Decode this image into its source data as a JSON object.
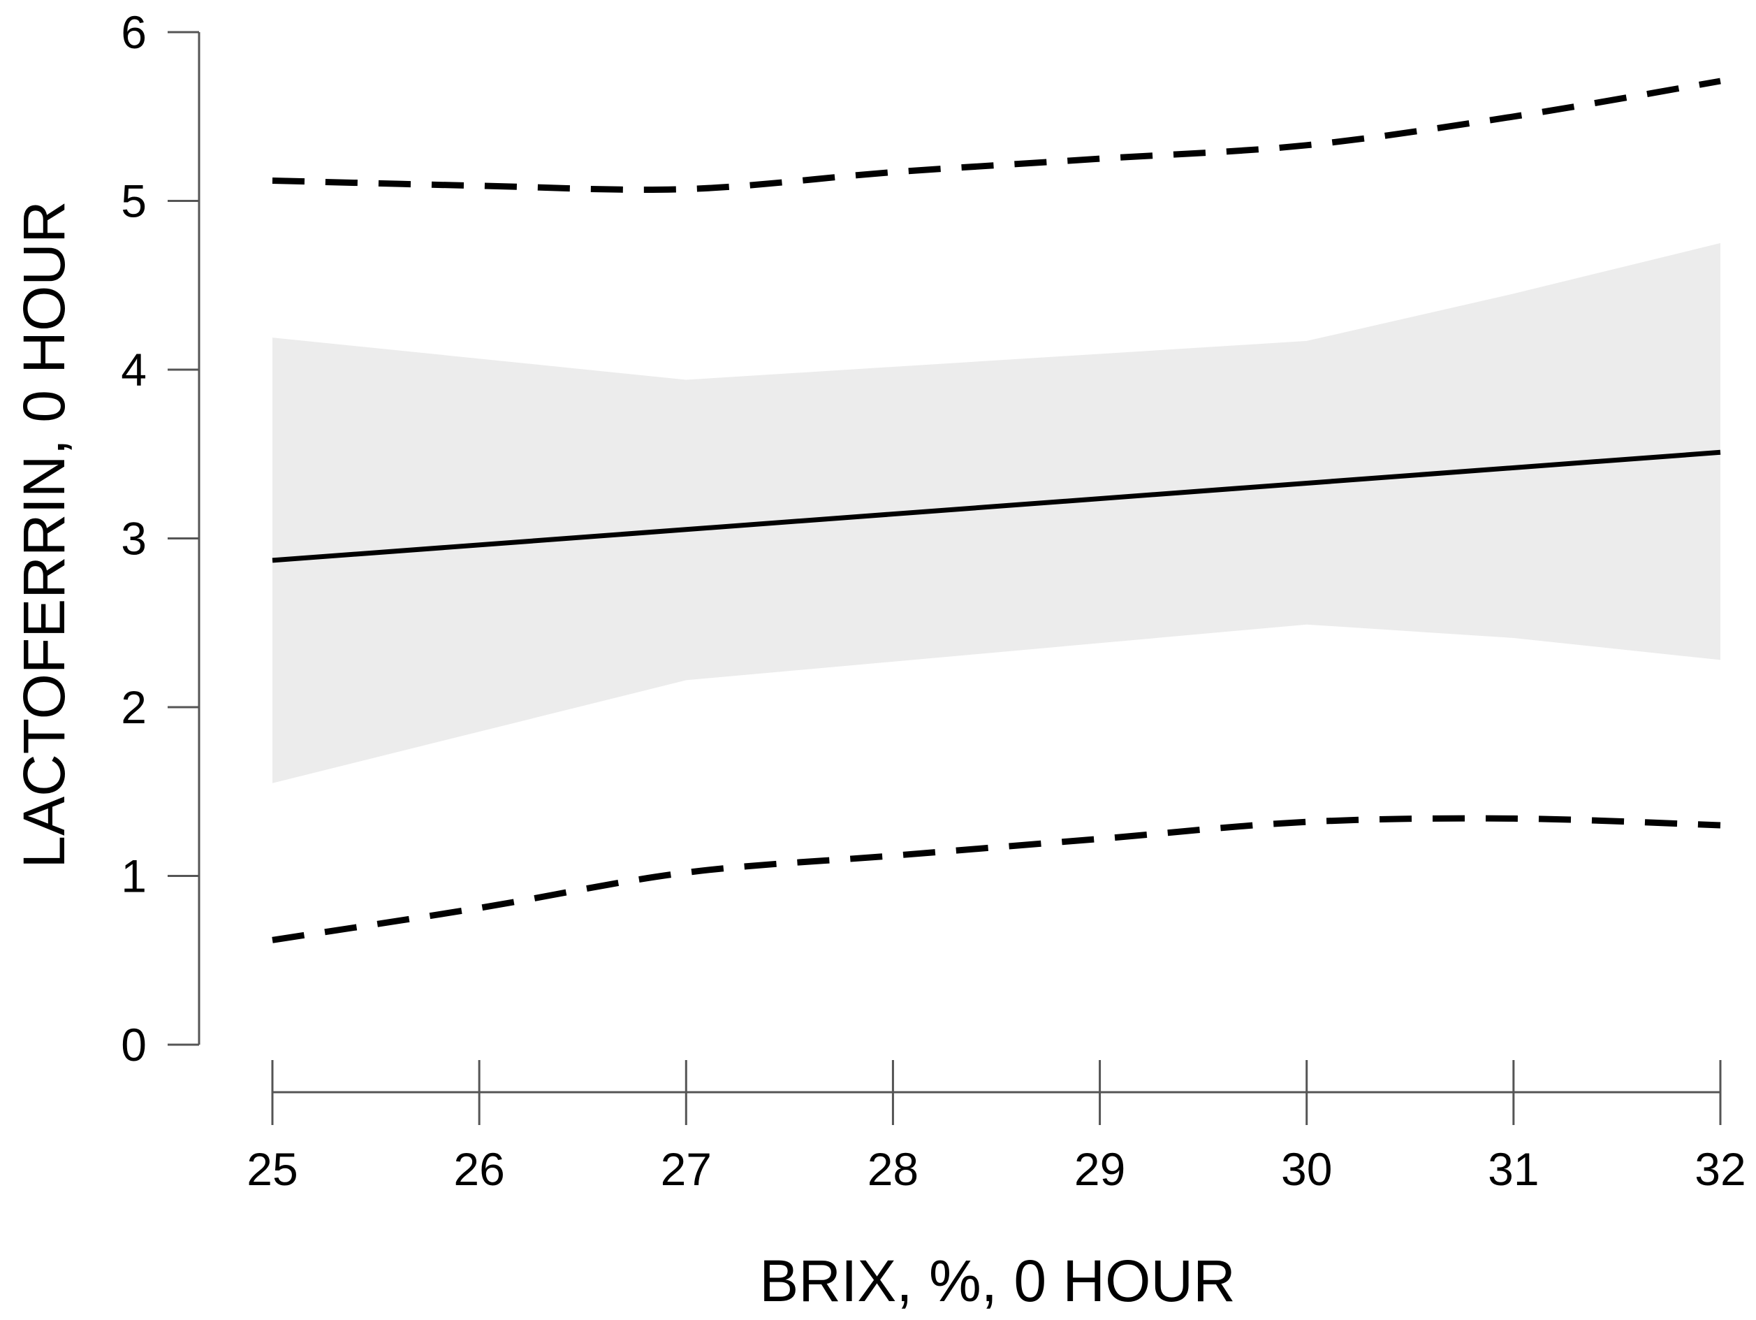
{
  "chart_data": {
    "type": "line",
    "xlabel": "BRIX, %, 0 HOUR",
    "ylabel": "LACTOFERRIN, 0 HOUR",
    "xlim": [
      25,
      32
    ],
    "ylim": [
      0,
      6
    ],
    "x_ticks": [
      25,
      26,
      27,
      28,
      29,
      30,
      31,
      32
    ],
    "y_ticks": [
      0,
      1,
      2,
      3,
      4,
      5,
      6
    ],
    "grid": false,
    "legend": "none",
    "series": [
      {
        "role": "fit",
        "style": "solid",
        "x": [
          25,
          32
        ],
        "y": [
          2.87,
          3.51
        ]
      },
      {
        "role": "confidence-band",
        "style": "shaded",
        "color": "#ececec",
        "x": [
          25,
          27,
          30,
          31,
          32
        ],
        "upper": [
          4.19,
          3.94,
          4.17,
          4.45,
          4.75
        ],
        "lower": [
          1.55,
          2.16,
          2.49,
          2.41,
          2.28
        ]
      },
      {
        "role": "upper-prediction",
        "style": "dashed",
        "x": [
          25,
          26,
          27,
          28,
          29,
          30,
          31,
          32
        ],
        "y": [
          5.12,
          5.09,
          5.07,
          5.17,
          5.25,
          5.33,
          5.5,
          5.71
        ]
      },
      {
        "role": "lower-prediction",
        "style": "dashed",
        "x": [
          25,
          26,
          27,
          28,
          29,
          30,
          31,
          32
        ],
        "y": [
          0.62,
          0.81,
          1.02,
          1.12,
          1.22,
          1.32,
          1.34,
          1.3
        ]
      }
    ]
  }
}
